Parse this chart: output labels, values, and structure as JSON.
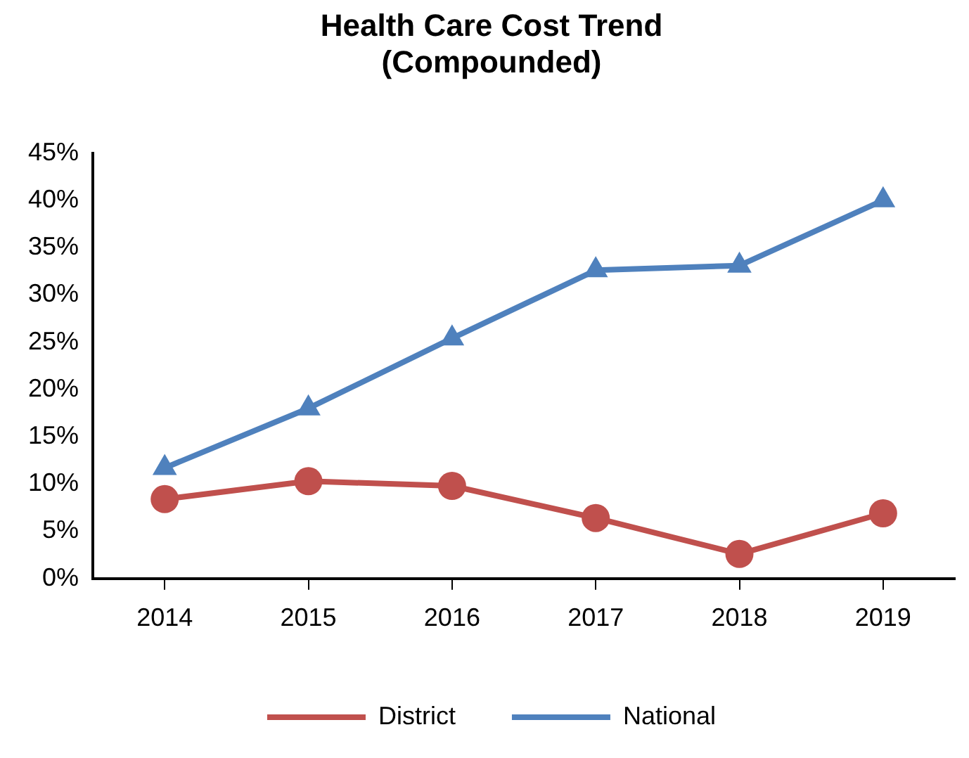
{
  "chart_data": {
    "type": "line",
    "title": "Health Care Cost Trend\n(Compounded)",
    "categories": [
      "2014",
      "2015",
      "2016",
      "2017",
      "2018",
      "2019"
    ],
    "series": [
      {
        "name": "District",
        "color": "#c0504d",
        "marker": "circle",
        "values": [
          8.4,
          10.3,
          9.8,
          6.4,
          2.6,
          6.9
        ]
      },
      {
        "name": "National",
        "color": "#4f81bd",
        "marker": "triangle",
        "values": [
          11.7,
          18.0,
          25.4,
          32.6,
          33.1,
          40.0
        ]
      }
    ],
    "ylim": [
      0,
      45
    ],
    "yticks": [
      {
        "value": 0,
        "label": "0%"
      },
      {
        "value": 5,
        "label": "5%"
      },
      {
        "value": 10,
        "label": "10%"
      },
      {
        "value": 15,
        "label": "15%"
      },
      {
        "value": 20,
        "label": "20%"
      },
      {
        "value": 25,
        "label": "25%"
      },
      {
        "value": 30,
        "label": "30%"
      },
      {
        "value": 35,
        "label": "35%"
      },
      {
        "value": 40,
        "label": "40%"
      },
      {
        "value": 45,
        "label": "45%"
      }
    ],
    "grid": false,
    "legend": "bottom",
    "line_style": "solid"
  }
}
